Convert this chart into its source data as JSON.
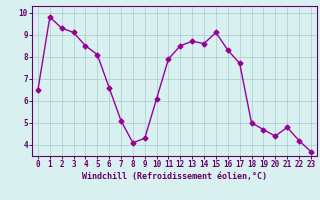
{
  "x": [
    0,
    1,
    2,
    3,
    4,
    5,
    6,
    7,
    8,
    9,
    10,
    11,
    12,
    13,
    14,
    15,
    16,
    17,
    18,
    19,
    20,
    21,
    22,
    23
  ],
  "y": [
    6.5,
    9.8,
    9.3,
    9.1,
    8.5,
    8.1,
    6.6,
    5.1,
    4.1,
    4.3,
    6.1,
    7.9,
    8.5,
    8.7,
    8.6,
    9.1,
    8.3,
    7.7,
    5.0,
    4.7,
    4.4,
    4.8,
    4.2,
    3.7
  ],
  "line_color": "#990099",
  "marker": "D",
  "markersize": 2.5,
  "linewidth": 1.0,
  "bg_color": "#d8f0f0",
  "grid_color": "#aacccc",
  "xlabel": "Windchill (Refroidissement éolien,°C)",
  "xlabel_color": "#660066",
  "xlabel_fontsize": 6,
  "ylabel_ticks": [
    4,
    5,
    6,
    7,
    8,
    9,
    10
  ],
  "xlim": [
    -0.5,
    23.5
  ],
  "ylim": [
    3.5,
    10.3
  ],
  "tick_color": "#660066",
  "tick_fontsize": 5.5,
  "spine_color": "#660066"
}
